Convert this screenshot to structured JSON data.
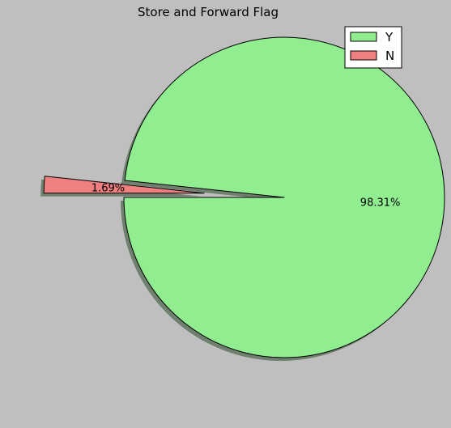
{
  "chart_data": {
    "type": "pie",
    "title": "Store and Forward Flag",
    "labels": [
      "Y",
      "N"
    ],
    "values": [
      98.31,
      1.69
    ],
    "value_labels": [
      "98.31%",
      "1.69%"
    ],
    "colors": [
      "#90ee90",
      "#f08080"
    ],
    "explode": [
      0,
      1
    ],
    "shadow": true,
    "legend": "top-right",
    "background": "#bfbfbf"
  }
}
